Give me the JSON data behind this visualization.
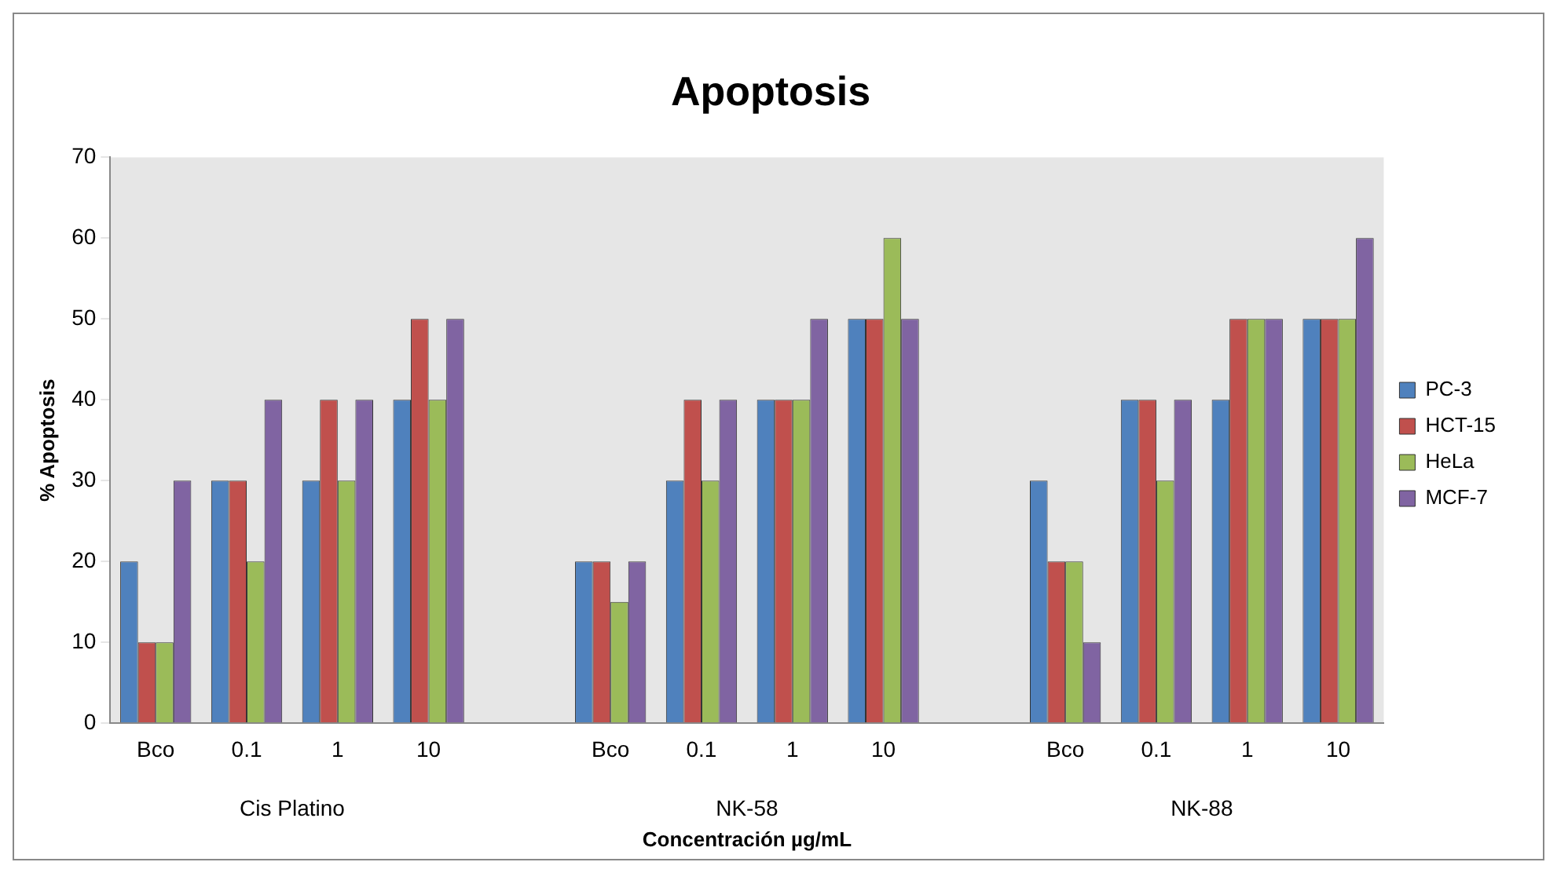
{
  "chart_data": {
    "type": "bar",
    "title": "Apoptosis",
    "xlabel": "Concentración µg/mL",
    "ylabel": "% Apoptosis",
    "categories": [
      "Bco",
      "0.1",
      "1",
      "10",
      null,
      "Bco",
      "0.1",
      "1",
      "10",
      null,
      "Bco",
      "0.1",
      "1",
      "10"
    ],
    "annotations": [
      "Cis Platino",
      "NK-58",
      "NK-88"
    ],
    "series": [
      {
        "name": "PC-3",
        "color": "#4f81bd",
        "values": [
          20,
          30,
          30,
          40,
          null,
          20,
          30,
          40,
          50,
          null,
          30,
          40,
          40,
          50
        ]
      },
      {
        "name": "HCT-15",
        "color": "#c0504d",
        "values": [
          10,
          30,
          40,
          50,
          null,
          20,
          40,
          40,
          50,
          null,
          20,
          40,
          50,
          50
        ]
      },
      {
        "name": "HeLa",
        "color": "#9bbb59",
        "values": [
          10,
          20,
          30,
          40,
          null,
          15,
          30,
          40,
          60,
          null,
          20,
          30,
          50,
          50
        ]
      },
      {
        "name": "MCF-7",
        "color": "#8064a2",
        "values": [
          30,
          40,
          40,
          50,
          null,
          20,
          40,
          50,
          50,
          null,
          10,
          40,
          50,
          60
        ]
      }
    ],
    "ylim": [
      0,
      70
    ],
    "yticks": [
      0,
      10,
      20,
      30,
      40,
      50,
      60,
      70
    ],
    "grid": false,
    "legend": "right"
  }
}
